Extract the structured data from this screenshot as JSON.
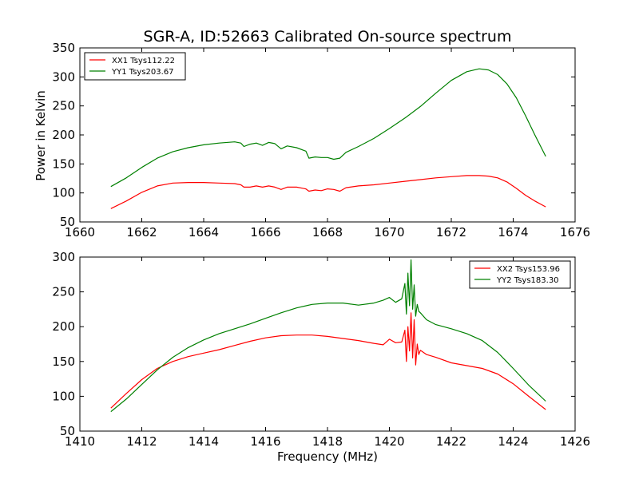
{
  "chart_data": [
    {
      "type": "line",
      "title": "SGR-A, ID:52663 Calibrated On-source spectrum",
      "xlabel": "",
      "ylabel": "Power in Kelvin",
      "xlim": [
        1660,
        1676
      ],
      "ylim": [
        50,
        350
      ],
      "xticks": [
        "1660",
        "1662",
        "1664",
        "1666",
        "1668",
        "1670",
        "1672",
        "1674",
        "1676"
      ],
      "yticks": [
        "50",
        "100",
        "150",
        "200",
        "250",
        "300",
        "350"
      ],
      "legend_position": "top-left",
      "grid": false,
      "series": [
        {
          "name": "XX1 Tsys112.22",
          "color": "#ff0000",
          "x": [
            1661.0,
            1661.5,
            1662.0,
            1662.5,
            1663.0,
            1663.5,
            1664.0,
            1664.5,
            1665.0,
            1665.2,
            1665.3,
            1665.5,
            1665.7,
            1665.9,
            1666.1,
            1666.3,
            1666.5,
            1666.7,
            1667.0,
            1667.3,
            1667.4,
            1667.6,
            1667.8,
            1668.0,
            1668.2,
            1668.4,
            1668.6,
            1669.0,
            1669.5,
            1670.0,
            1670.5,
            1671.0,
            1671.5,
            1672.0,
            1672.5,
            1672.9,
            1673.2,
            1673.5,
            1673.8,
            1674.1,
            1674.4,
            1674.7,
            1675.05
          ],
          "y": [
            73,
            86,
            101,
            112,
            117,
            118,
            118,
            117,
            116,
            114,
            110,
            110,
            112,
            110,
            112,
            110,
            106,
            110,
            110,
            107,
            103,
            105,
            104,
            107,
            106,
            103,
            109,
            112,
            114,
            117,
            120,
            123,
            126,
            128,
            130,
            130,
            129,
            126,
            119,
            108,
            96,
            86,
            76
          ]
        },
        {
          "name": "YY1 Tsys203.67",
          "color": "#008000",
          "x": [
            1661.0,
            1661.5,
            1662.0,
            1662.5,
            1663.0,
            1663.5,
            1664.0,
            1664.5,
            1665.0,
            1665.2,
            1665.3,
            1665.5,
            1665.7,
            1665.9,
            1666.1,
            1666.3,
            1666.5,
            1666.7,
            1667.0,
            1667.3,
            1667.4,
            1667.6,
            1667.8,
            1668.0,
            1668.2,
            1668.4,
            1668.6,
            1669.0,
            1669.5,
            1670.0,
            1670.5,
            1671.0,
            1671.5,
            1672.0,
            1672.5,
            1672.9,
            1673.2,
            1673.5,
            1673.8,
            1674.1,
            1674.4,
            1674.7,
            1675.05
          ],
          "y": [
            111,
            126,
            144,
            160,
            171,
            178,
            183,
            186,
            188,
            186,
            180,
            184,
            186,
            182,
            187,
            185,
            176,
            181,
            178,
            172,
            160,
            162,
            161,
            161,
            158,
            160,
            170,
            180,
            194,
            211,
            229,
            249,
            272,
            294,
            309,
            314,
            312,
            304,
            288,
            264,
            233,
            200,
            163
          ]
        }
      ]
    },
    {
      "type": "line",
      "title": "",
      "xlabel": "Frequency (MHz)",
      "ylabel": "",
      "xlim": [
        1410,
        1426
      ],
      "ylim": [
        50,
        300
      ],
      "xticks": [
        "1410",
        "1412",
        "1414",
        "1416",
        "1418",
        "1420",
        "1422",
        "1424",
        "1426"
      ],
      "yticks": [
        "50",
        "100",
        "150",
        "200",
        "250",
        "300"
      ],
      "legend_position": "top-right",
      "grid": false,
      "series": [
        {
          "name": "XX2 Tsys153.96",
          "color": "#ff0000",
          "x": [
            1411.0,
            1411.5,
            1412.0,
            1412.5,
            1413.0,
            1413.5,
            1414.0,
            1414.5,
            1415.0,
            1415.5,
            1416.0,
            1416.5,
            1417.0,
            1417.5,
            1418.0,
            1418.5,
            1419.0,
            1419.5,
            1419.8,
            1420.0,
            1420.2,
            1420.4,
            1420.5,
            1420.55,
            1420.6,
            1420.65,
            1420.7,
            1420.75,
            1420.8,
            1420.85,
            1420.9,
            1420.95,
            1421.0,
            1421.2,
            1421.5,
            1422.0,
            1422.5,
            1423.0,
            1423.5,
            1424.0,
            1424.5,
            1425.05
          ],
          "y": [
            83,
            104,
            124,
            140,
            150,
            157,
            162,
            167,
            173,
            179,
            184,
            187,
            188,
            188,
            186,
            183,
            180,
            176,
            174,
            182,
            177,
            178,
            195,
            150,
            200,
            165,
            220,
            155,
            210,
            145,
            175,
            160,
            166,
            160,
            156,
            148,
            144,
            140,
            132,
            118,
            100,
            81
          ]
        },
        {
          "name": "YY2 Tsys183.30",
          "color": "#008000",
          "x": [
            1411.0,
            1411.5,
            1412.0,
            1412.5,
            1413.0,
            1413.5,
            1414.0,
            1414.5,
            1415.0,
            1415.5,
            1416.0,
            1416.5,
            1417.0,
            1417.5,
            1418.0,
            1418.5,
            1419.0,
            1419.5,
            1419.8,
            1420.0,
            1420.2,
            1420.4,
            1420.5,
            1420.55,
            1420.6,
            1420.65,
            1420.7,
            1420.75,
            1420.8,
            1420.85,
            1420.9,
            1420.95,
            1421.0,
            1421.2,
            1421.5,
            1422.0,
            1422.5,
            1423.0,
            1423.5,
            1424.0,
            1424.5,
            1425.05
          ],
          "y": [
            78,
            96,
            117,
            138,
            156,
            170,
            181,
            190,
            197,
            204,
            212,
            220,
            227,
            232,
            234,
            234,
            231,
            234,
            238,
            242,
            235,
            240,
            262,
            218,
            277,
            230,
            296,
            225,
            260,
            215,
            232,
            222,
            220,
            210,
            203,
            197,
            190,
            180,
            163,
            140,
            116,
            93
          ]
        }
      ]
    }
  ]
}
